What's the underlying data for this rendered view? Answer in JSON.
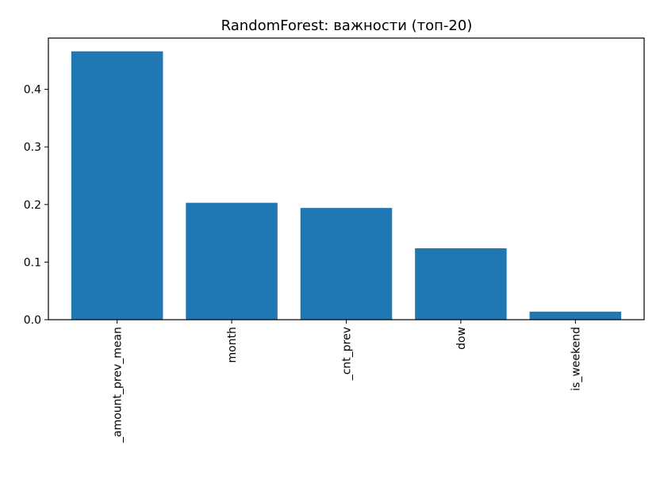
{
  "chart_data": {
    "type": "bar",
    "title": "RandomForest: важности (топ-20)",
    "xlabel": "",
    "ylabel": "",
    "categories": [
      "_amount_prev_mean",
      "month",
      "_cnt_prev",
      "dow",
      "is_weekend"
    ],
    "values": [
      0.466,
      0.203,
      0.194,
      0.124,
      0.014
    ],
    "ylim": [
      0,
      0.489
    ],
    "yticks": [
      0.0,
      0.1,
      0.2,
      0.3,
      0.4
    ],
    "ytick_labels": [
      "0.0",
      "0.1",
      "0.2",
      "0.3",
      "0.4"
    ],
    "bar_color": "#1f77b4",
    "grid": false,
    "legend": "none",
    "xtick_rotation": "vertical"
  }
}
